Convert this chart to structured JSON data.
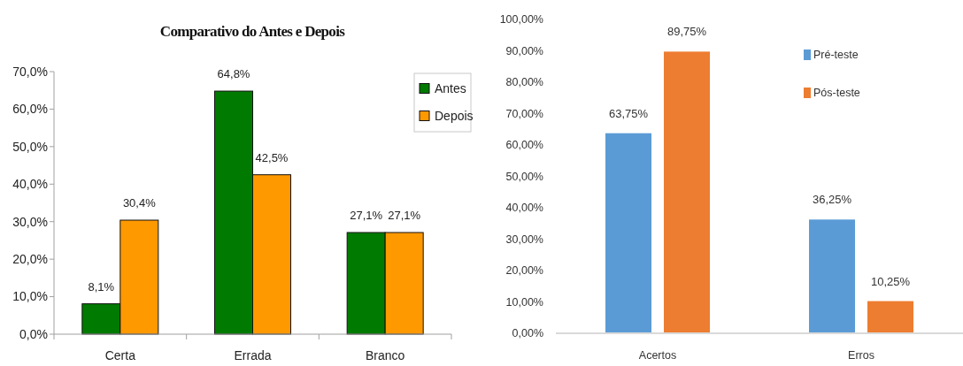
{
  "chart_data": [
    {
      "type": "bar",
      "title": "Comparativo do Antes e Depois",
      "categories": [
        "Certa",
        "Errada",
        "Branco"
      ],
      "series": [
        {
          "name": "Antes",
          "color": "#007a00",
          "values": [
            8.1,
            64.8,
            27.1
          ],
          "value_labels": [
            "8,1%",
            "64,8%",
            "27,1%"
          ]
        },
        {
          "name": "Depois",
          "color": "#ff9900",
          "values": [
            30.4,
            42.5,
            27.1
          ],
          "value_labels": [
            "30,4%",
            "42,5%",
            "27,1%"
          ]
        }
      ],
      "ylim": [
        0,
        70
      ],
      "yticks": [
        {
          "value": 0,
          "label": "0,0%"
        },
        {
          "value": 10,
          "label": "10,0%"
        },
        {
          "value": 20,
          "label": "20,0%"
        },
        {
          "value": 30,
          "label": "30,0%"
        },
        {
          "value": 40,
          "label": "40,0%"
        },
        {
          "value": 50,
          "label": "50,0%"
        },
        {
          "value": 60,
          "label": "60,0%"
        },
        {
          "value": 70,
          "label": "70,0%"
        }
      ],
      "legend": "top right"
    },
    {
      "type": "bar",
      "categories": [
        "Acertos",
        "Erros"
      ],
      "series": [
        {
          "name": "Pré-teste",
          "color": "#5b9bd5",
          "values": [
            63.75,
            36.25
          ],
          "value_labels": [
            "63,75%",
            "36,25%"
          ]
        },
        {
          "name": "Pós-teste",
          "color": "#ed7d31",
          "values": [
            89.75,
            10.25
          ],
          "value_labels": [
            "89,75%",
            "10,25%"
          ]
        }
      ],
      "ylim": [
        0,
        100
      ],
      "yticks": [
        {
          "value": 0,
          "label": "0,00%"
        },
        {
          "value": 10,
          "label": "10,00%"
        },
        {
          "value": 20,
          "label": "20,00%"
        },
        {
          "value": 30,
          "label": "30,00%"
        },
        {
          "value": 40,
          "label": "40,00%"
        },
        {
          "value": 50,
          "label": "50,00%"
        },
        {
          "value": 60,
          "label": "60,00%"
        },
        {
          "value": 70,
          "label": "70,00%"
        },
        {
          "value": 80,
          "label": "80,00%"
        },
        {
          "value": 90,
          "label": "90,00%"
        },
        {
          "value": 100,
          "label": "100,00%"
        }
      ],
      "legend": "top right"
    }
  ]
}
